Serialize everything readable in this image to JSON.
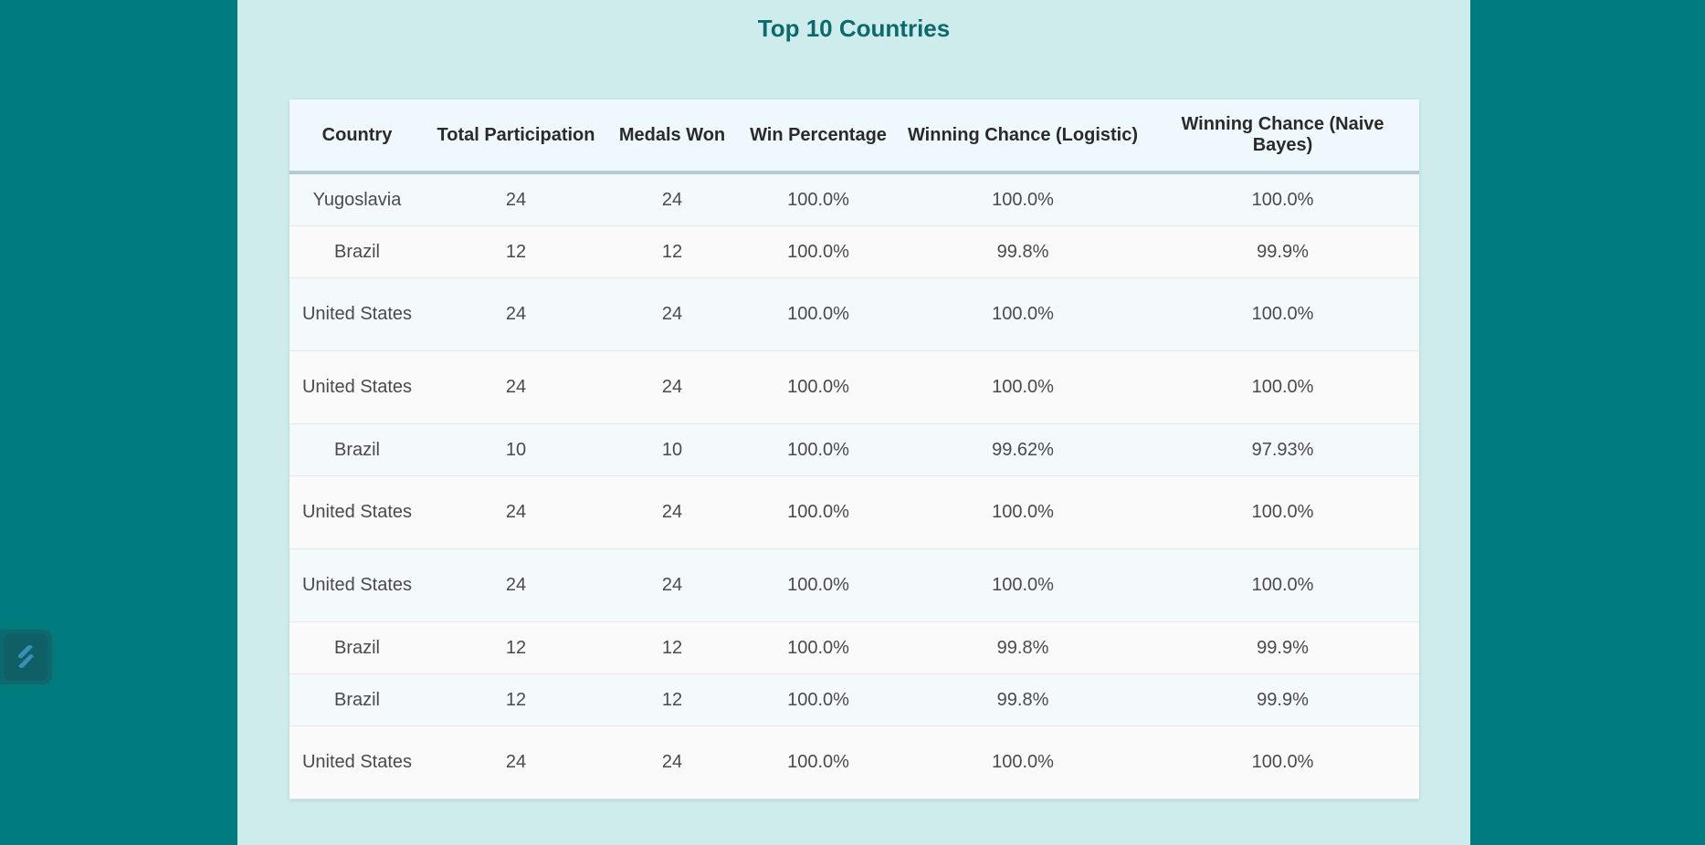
{
  "title": "Top 10 Countries",
  "table": {
    "headers": [
      "Country",
      "Total Participation",
      "Medals Won",
      "Win Percentage",
      "Winning Chance (Logistic)",
      "Winning Chance (Naive Bayes)"
    ],
    "rows": [
      [
        "Yugoslavia",
        "24",
        "24",
        "100.0%",
        "100.0%",
        "100.0%"
      ],
      [
        "Brazil",
        "12",
        "12",
        "100.0%",
        "99.8%",
        "99.9%"
      ],
      [
        "United States",
        "24",
        "24",
        "100.0%",
        "100.0%",
        "100.0%"
      ],
      [
        "United States",
        "24",
        "24",
        "100.0%",
        "100.0%",
        "100.0%"
      ],
      [
        "Brazil",
        "10",
        "10",
        "100.0%",
        "99.62%",
        "97.93%"
      ],
      [
        "United States",
        "24",
        "24",
        "100.0%",
        "100.0%",
        "100.0%"
      ],
      [
        "United States",
        "24",
        "24",
        "100.0%",
        "100.0%",
        "100.0%"
      ],
      [
        "Brazil",
        "12",
        "12",
        "100.0%",
        "99.8%",
        "99.9%"
      ],
      [
        "Brazil",
        "12",
        "12",
        "100.0%",
        "99.8%",
        "99.9%"
      ],
      [
        "United States",
        "24",
        "24",
        "100.0%",
        "100.0%",
        "100.0%"
      ]
    ]
  },
  "side_widget": {
    "icon": "stacked-bars-logo-icon"
  },
  "colors": {
    "background": "#007b7e",
    "panel": "#ceeceb",
    "title": "#0b6a6c"
  }
}
